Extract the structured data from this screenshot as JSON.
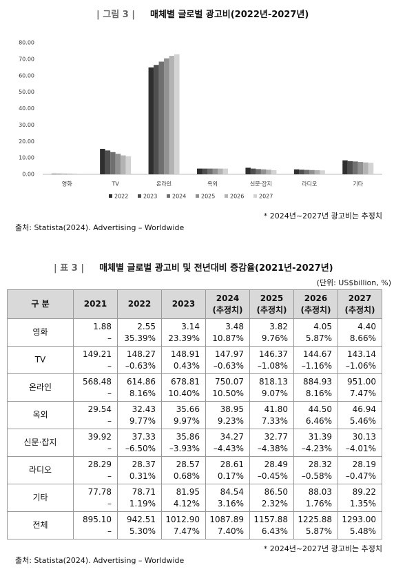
{
  "figure": {
    "label": "| 그림 3 |",
    "title": "매체별 글로벌 광고비(2022년-2027년)",
    "chart_data": {
      "type": "bar",
      "categories": [
        "영화",
        "TV",
        "온라인",
        "옥외",
        "신문·잡지",
        "라디오",
        "기타"
      ],
      "series": [
        {
          "name": "2022",
          "color": "#2f2f2f",
          "values": [
            0.3,
            15.5,
            65,
            3.5,
            4,
            3,
            8.5
          ]
        },
        {
          "name": "2023",
          "color": "#4f4f4f",
          "values": [
            0.3,
            14.5,
            66.5,
            3.5,
            3.5,
            2.8,
            8
          ]
        },
        {
          "name": "2024",
          "color": "#707070",
          "values": [
            0.3,
            13.5,
            68.5,
            3.5,
            3.2,
            2.7,
            7.8
          ]
        },
        {
          "name": "2025",
          "color": "#919191",
          "values": [
            0.3,
            12.5,
            70.5,
            3.5,
            3,
            2.6,
            7.5
          ]
        },
        {
          "name": "2026",
          "color": "#b3b3b3",
          "values": [
            0.3,
            11.5,
            72,
            3.5,
            2.8,
            2.5,
            7.2
          ]
        },
        {
          "name": "2027",
          "color": "#d3d3d3",
          "values": [
            0.3,
            11,
            73,
            3.5,
            2.5,
            2.4,
            7
          ]
        }
      ],
      "ylim": [
        0,
        80
      ],
      "yticks": [
        {
          "value": 0,
          "label": "0.00"
        },
        {
          "value": 10,
          "label": "10.00"
        },
        {
          "value": 20,
          "label": "20.00"
        },
        {
          "value": 30,
          "label": "30.00"
        },
        {
          "value": 40,
          "label": "40.00"
        },
        {
          "value": 50,
          "label": "50.00"
        },
        {
          "value": 60,
          "label": "60.00"
        },
        {
          "value": 70,
          "label": "70.00"
        },
        {
          "value": 80,
          "label": "80.00"
        }
      ],
      "grid": false
    },
    "note": "* 2024년~2027년 광고비는 추정치",
    "source": "출처: Statista(2024). Advertising – Worldwide"
  },
  "table": {
    "label": "| 표 3 |",
    "title": "매체별 글로벌 광고비 및 전년대비 증감율(2021년-2027년)",
    "unit": "(단위: US$billion, %)",
    "header": [
      [
        "구 분"
      ],
      [
        "2021"
      ],
      [
        "2022"
      ],
      [
        "2023"
      ],
      [
        "2024",
        "(추정치)"
      ],
      [
        "2025",
        "(추정치)"
      ],
      [
        "2026",
        "(추정치)"
      ],
      [
        "2027",
        "(추정치)"
      ]
    ],
    "rows": [
      {
        "label": "영화",
        "values": [
          "1.88",
          "2.55",
          "3.14",
          "3.48",
          "3.82",
          "4.05",
          "4.40"
        ],
        "changes": [
          "–",
          "35.39%",
          "23.39%",
          "10.87%",
          "9.76%",
          "5.87%",
          "8.66%"
        ]
      },
      {
        "label": "TV",
        "values": [
          "149.21",
          "148.27",
          "148.91",
          "147.97",
          "146.37",
          "144.67",
          "143.14"
        ],
        "changes": [
          "–",
          "–0.63%",
          "0.43%",
          "–0.63%",
          "–1.08%",
          "–1.16%",
          "–1.06%"
        ]
      },
      {
        "label": "온라인",
        "values": [
          "568.48",
          "614.86",
          "678.81",
          "750.07",
          "818.13",
          "884.93",
          "951.00"
        ],
        "changes": [
          "–",
          "8.16%",
          "10.40%",
          "10.50%",
          "9.07%",
          "8.16%",
          "7.47%"
        ]
      },
      {
        "label": "옥외",
        "values": [
          "29.54",
          "32.43",
          "35.66",
          "38.95",
          "41.80",
          "44.50",
          "46.94"
        ],
        "changes": [
          "–",
          "9.77%",
          "9.97%",
          "9.23%",
          "7.33%",
          "6.46%",
          "5.46%"
        ]
      },
      {
        "label": "신문·잡지",
        "values": [
          "39.92",
          "37.33",
          "35.86",
          "34.27",
          "32.77",
          "31.39",
          "30.13"
        ],
        "changes": [
          "–",
          "–6.50%",
          "–3.93%",
          "–4.43%",
          "–4.38%",
          "–4.23%",
          "–4.01%"
        ]
      },
      {
        "label": "라디오",
        "values": [
          "28.29",
          "28.37",
          "28.57",
          "28.61",
          "28.49",
          "28.32",
          "28.19"
        ],
        "changes": [
          "–",
          "0.31%",
          "0.68%",
          "0.17%",
          "–0.45%",
          "–0.58%",
          "–0.47%"
        ]
      },
      {
        "label": "기타",
        "values": [
          "77.78",
          "78.71",
          "81.95",
          "84.54",
          "86.50",
          "88.03",
          "89.22"
        ],
        "changes": [
          "–",
          "1.19%",
          "4.12%",
          "3.16%",
          "2.32%",
          "1.76%",
          "1.35%"
        ]
      },
      {
        "label": "전체",
        "values": [
          "895.10",
          "942.51",
          "1012.90",
          "1087.89",
          "1157.88",
          "1225.88",
          "1293.00"
        ],
        "changes": [
          "–",
          "5.30%",
          "7.47%",
          "7.40%",
          "6.43%",
          "5.87%",
          "5.48%"
        ]
      }
    ],
    "note": "* 2024년~2027년 광고비는 추정치",
    "source": "출처: Statista(2024). Advertising – Worldwide"
  }
}
